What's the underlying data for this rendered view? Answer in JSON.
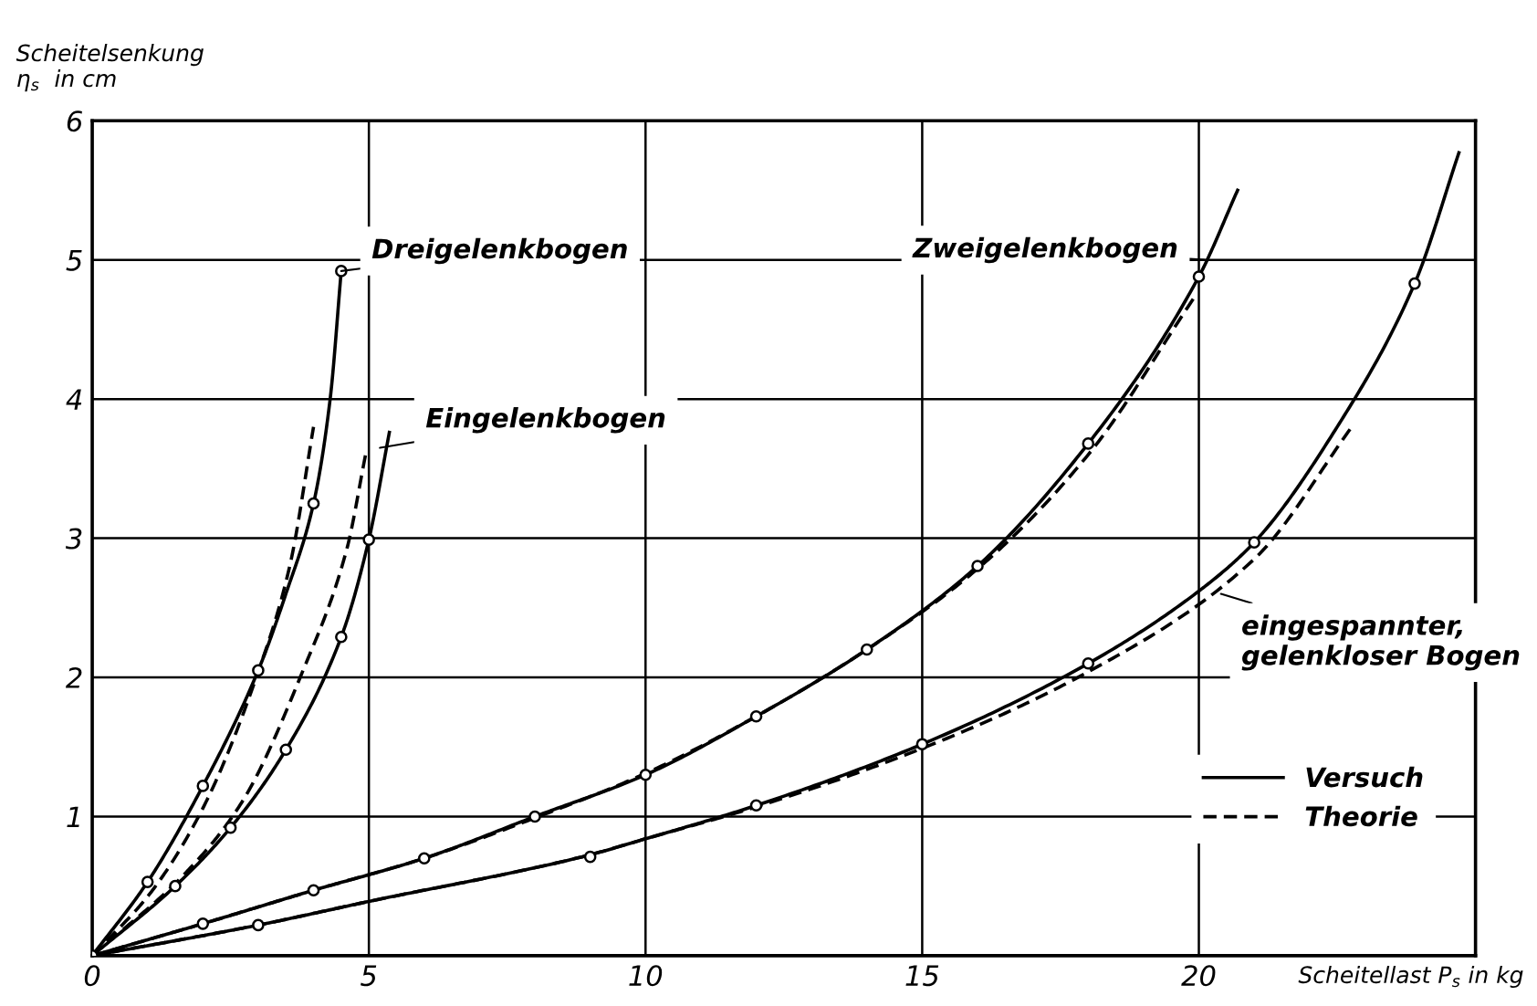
{
  "chart_data": {
    "type": "line",
    "xlabel": "Scheitellast P$_{s}$ in kg",
    "ylabel": "Scheitelsenkung\nη$_{s}$  in cm",
    "xlim": [
      0,
      25
    ],
    "ylim": [
      0,
      6
    ],
    "xticks": [
      0,
      5,
      10,
      15,
      20,
      {
        "value": 25,
        "label": null
      }
    ],
    "yticks": [
      {
        "value": 0,
        "label": null
      },
      1,
      2,
      3,
      4,
      5,
      6
    ],
    "grid": true,
    "legend": "bottom right",
    "series": [
      {
        "name": "Versuch",
        "color": "#000000",
        "line_style": "solid",
        "x": [
          0,
          1,
          2,
          3,
          3.5,
          4,
          4.3,
          4.5
        ],
        "values": [
          0,
          0.53,
          1.22,
          2.05,
          2.6,
          3.25,
          4.0,
          4.92
        ]
      },
      {
        "name": "Theorie",
        "color": "#000000",
        "line_style": "dashed",
        "x": [
          0,
          1.07,
          2,
          3,
          3.57,
          4
        ],
        "values": [
          0,
          0.46,
          1.06,
          2.04,
          2.8,
          3.8
        ]
      },
      {
        "color": "#000000",
        "line_style": "solid",
        "x": [
          0,
          1.5,
          2.5,
          3.5,
          4.5,
          5,
          5.37
        ],
        "values": [
          0,
          0.5,
          0.92,
          1.48,
          2.29,
          2.99,
          3.76
        ]
      },
      {
        "color": "#000000",
        "line_style": "dashed",
        "x": [
          0,
          1.7,
          2.7,
          3.8,
          4.6,
          4.94
        ],
        "values": [
          0,
          0.6,
          1.1,
          2.04,
          2.92,
          3.6
        ]
      },
      {
        "color": "#000000",
        "line_style": "solid",
        "x": [
          0,
          2,
          4,
          6,
          8,
          10,
          12,
          14,
          16,
          18,
          20,
          20.7
        ],
        "values": [
          0,
          0.23,
          0.47,
          0.7,
          1.0,
          1.3,
          1.72,
          2.2,
          2.8,
          3.68,
          4.88,
          5.5
        ]
      },
      {
        "color": "#000000",
        "line_style": "dashed",
        "x": [
          0,
          2,
          4,
          6,
          8,
          10,
          12,
          14,
          16,
          18,
          19.9
        ],
        "values": [
          0,
          0.23,
          0.47,
          0.7,
          0.99,
          1.31,
          1.72,
          2.2,
          2.78,
          3.6,
          4.72
        ]
      },
      {
        "color": "#000000",
        "line_style": "solid",
        "x": [
          0,
          3,
          5,
          8.85,
          10,
          12,
          15,
          18,
          20,
          21,
          22.5,
          23.9,
          24.7
        ],
        "values": [
          0,
          0.22,
          0.39,
          0.71,
          0.84,
          1.08,
          1.52,
          2.1,
          2.62,
          2.97,
          3.8,
          4.83,
          5.77
        ]
      },
      {
        "color": "#000000",
        "line_style": "dashed",
        "x": [
          0,
          3,
          5,
          8.85,
          10,
          12,
          15,
          18,
          21,
          22.8
        ],
        "values": [
          0,
          0.22,
          0.39,
          0.71,
          0.84,
          1.07,
          1.49,
          2.04,
          2.85,
          3.82
        ]
      },
      {
        "type": "scatter",
        "color": "#000000",
        "marker": "circle",
        "x": [
          0,
          1,
          2,
          3,
          4,
          4.5
        ],
        "values": [
          0,
          0.53,
          1.22,
          2.05,
          3.25,
          4.92
        ]
      },
      {
        "type": "scatter",
        "color": "#000000",
        "marker": "circle",
        "x": [
          1.5,
          2.5,
          3.5,
          4.5,
          5
        ],
        "values": [
          0.5,
          0.92,
          1.48,
          2.29,
          2.99
        ]
      },
      {
        "type": "scatter",
        "color": "#000000",
        "marker": "circle",
        "x": [
          2,
          4,
          6,
          8,
          10,
          12,
          14,
          16,
          18,
          20
        ],
        "values": [
          0.23,
          0.47,
          0.7,
          1.0,
          1.3,
          1.72,
          2.2,
          2.8,
          3.68,
          4.88
        ]
      },
      {
        "type": "scatter",
        "color": "#000000",
        "marker": "circle",
        "x": [
          3,
          9,
          12,
          15,
          18,
          21,
          23.9
        ],
        "values": [
          0.22,
          0.71,
          1.08,
          1.52,
          2.1,
          2.97,
          4.83
        ]
      }
    ],
    "annotations": [
      {
        "text": "Dreigelenkbogen",
        "x": 4.5,
        "y": 4.92
      },
      {
        "text": "Eingelenkbogen",
        "x": 5.2,
        "y": 3.65
      },
      {
        "text": "Zweigelenkbogen",
        "x": 20.1,
        "y": 5.0
      },
      {
        "text": "eingespannter,\ngelenkloser Bogen",
        "x": 20.4,
        "y": 2.6
      }
    ]
  }
}
